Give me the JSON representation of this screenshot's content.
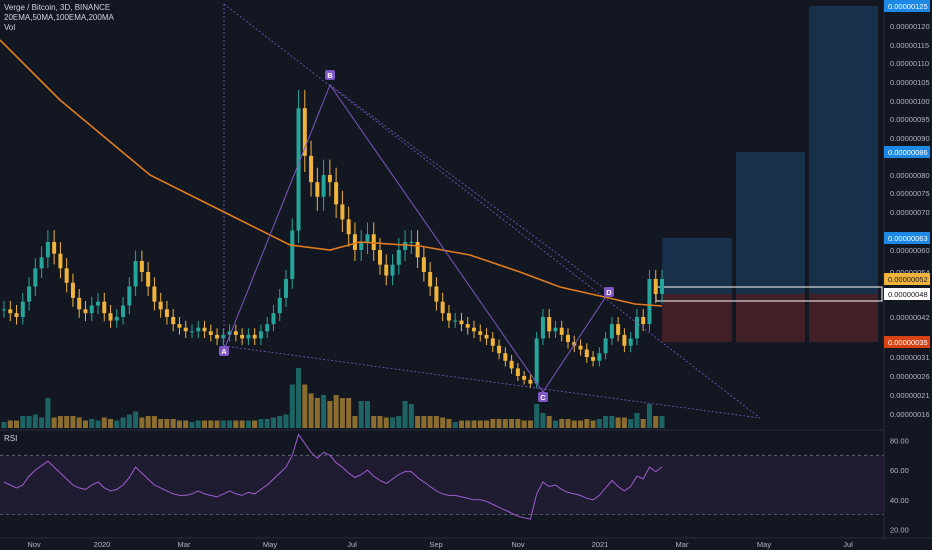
{
  "legend": {
    "symbol_line": "Verge / Bitcoin, 3D, BINANCE",
    "ma_line": "20EMA,50MA,100EMA,200MA",
    "vol_line": "Vol"
  },
  "rsi": {
    "title": "RSI"
  },
  "colors": {
    "background": "#131722",
    "up_candle": "#26a69a",
    "down_candle": "#f0b43c",
    "ema": "#e07c1f",
    "pattern": "#7e57c2",
    "profit_zone": "#1c3a5a",
    "loss_zone": "#4a2127",
    "rsi_line": "#9c5fd0",
    "badge_blue": "#1e88e5",
    "badge_yellow": "#f0b43c",
    "badge_red": "#d84315"
  },
  "chart_data": [
    {
      "type": "candlestick",
      "ylim": [
        1.3e-07,
        1.28e-07
      ],
      "yticks": [
        "0.00000120",
        "0.00000115",
        "0.00000110",
        "0.00000105",
        "0.00000100",
        "0.00000095",
        "0.00000090",
        "0.00000080",
        "0.00000075",
        "0.00000070",
        "0.00000060",
        "0.00000054",
        "0.00000042",
        "0.00000031",
        "0.00000026",
        "0.00000021",
        "0.00000016"
      ],
      "ytick_values": [
        1.2e-06,
        1.15e-06,
        1.1e-06,
        1.05e-06,
        1e-06,
        9.5e-07,
        9e-07,
        8e-07,
        7.5e-07,
        7e-07,
        6e-07,
        5.4e-07,
        4.2e-07,
        3.1e-07,
        2.6e-07,
        2.1e-07,
        1.6e-07
      ],
      "price_badges": [
        {
          "label": "0.00000125",
          "value": 1.25e-06,
          "color": "blue"
        },
        {
          "label": "0.00000086",
          "value": 8.6e-07,
          "color": "blue"
        },
        {
          "label": "0.00000063",
          "value": 6.3e-07,
          "color": "blue"
        },
        {
          "label": "0.00000052",
          "value": 5.2e-07,
          "color": "yellow"
        },
        {
          "label": "0.00000048",
          "value": 4.8e-07,
          "color": "white"
        },
        {
          "label": "0.00000035",
          "value": 3.5e-07,
          "color": "red"
        }
      ],
      "xticks": [
        "Nov",
        "2020",
        "Mar",
        "May",
        "Jul",
        "Sep",
        "Nov",
        "2021",
        "Mar",
        "May",
        "Jul"
      ],
      "pattern_points": [
        {
          "label": "A",
          "value": 3.5e-07
        },
        {
          "label": "B",
          "value": 1.05e-06
        },
        {
          "label": "C",
          "value": 2.3e-07
        },
        {
          "label": "D",
          "value": 4.8e-07
        }
      ],
      "series_close": [
        4.4e-07,
        4.3e-07,
        4.2e-07,
        4.6e-07,
        5e-07,
        5.5e-07,
        5.8e-07,
        6.2e-07,
        5.9e-07,
        5.5e-07,
        5.1e-07,
        4.7e-07,
        4.4e-07,
        4.3e-07,
        4.5e-07,
        4.6e-07,
        4.3e-07,
        4.1e-07,
        4.2e-07,
        4.5e-07,
        5e-07,
        5.7e-07,
        5.4e-07,
        5e-07,
        4.6e-07,
        4.4e-07,
        4.2e-07,
        4e-07,
        3.9e-07,
        3.8e-07,
        3.8e-07,
        3.9e-07,
        3.8e-07,
        3.7e-07,
        3.6e-07,
        3.7e-07,
        3.8e-07,
        3.7e-07,
        3.6e-07,
        3.7e-07,
        3.6e-07,
        3.8e-07,
        4e-07,
        4.3e-07,
        4.7e-07,
        5.2e-07,
        6.5e-07,
        9.8e-07,
        8.5e-07,
        7.8e-07,
        7.4e-07,
        8e-07,
        7.8e-07,
        7.2e-07,
        6.8e-07,
        6.4e-07,
        6e-07,
        6.2e-07,
        6.4e-07,
        6e-07,
        5.6e-07,
        5.3e-07,
        5.6e-07,
        6e-07,
        6.2e-07,
        6.2e-07,
        5.8e-07,
        5.4e-07,
        5e-07,
        4.6e-07,
        4.3e-07,
        4.1e-07,
        4.1e-07,
        4e-07,
        3.9e-07,
        3.8e-07,
        3.7e-07,
        3.6e-07,
        3.4e-07,
        3.2e-07,
        3e-07,
        2.8e-07,
        2.6e-07,
        2.5e-07,
        2.4e-07,
        3.6e-07,
        4.2e-07,
        3.8e-07,
        3.9e-07,
        3.7e-07,
        3.5e-07,
        3.4e-07,
        3.3e-07,
        3.1e-07,
        3e-07,
        3.2e-07,
        3.6e-07,
        4e-07,
        3.7e-07,
        3.4e-07,
        3.6e-07,
        4.2e-07,
        4e-07,
        5.2e-07,
        4.8e-07,
        5.2e-07
      ]
    },
    {
      "type": "line",
      "title": "RSI",
      "yticks": [
        "80.00",
        "60.00",
        "40.00",
        "20.00"
      ],
      "ytick_values": [
        80,
        60,
        40,
        20
      ],
      "ylim": [
        17,
        87
      ],
      "bands": [
        70,
        30
      ],
      "values": [
        52,
        50,
        48,
        50,
        56,
        60,
        63,
        66,
        62,
        58,
        54,
        50,
        48,
        47,
        50,
        52,
        48,
        46,
        47,
        50,
        55,
        62,
        58,
        54,
        50,
        48,
        46,
        44,
        43,
        43,
        44,
        46,
        44,
        43,
        42,
        44,
        46,
        44,
        43,
        45,
        44,
        47,
        50,
        54,
        58,
        62,
        70,
        84,
        78,
        72,
        68,
        72,
        70,
        65,
        62,
        58,
        55,
        57,
        60,
        56,
        53,
        51,
        54,
        57,
        59,
        59,
        55,
        52,
        49,
        46,
        44,
        43,
        43,
        42,
        41,
        40,
        40,
        39,
        37,
        35,
        33,
        31,
        29,
        28,
        27,
        44,
        52,
        49,
        50,
        47,
        45,
        44,
        43,
        41,
        40,
        43,
        48,
        53,
        49,
        46,
        49,
        56,
        54,
        62,
        59,
        62
      ]
    }
  ]
}
